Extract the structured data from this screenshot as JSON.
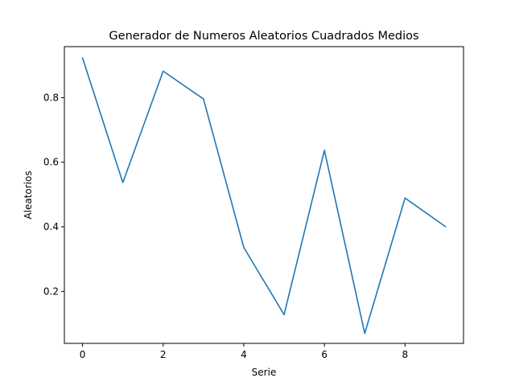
{
  "chart_data": {
    "type": "line",
    "title": "Generador de Numeros Aleatorios Cuadrados Medios",
    "xlabel": "Serie",
    "ylabel": "Aleatorios",
    "xlim": [
      -0.45,
      9.45
    ],
    "ylim": [
      0.039,
      0.958
    ],
    "xticks": [
      0,
      2,
      4,
      6,
      8
    ],
    "yticks": [
      0.2,
      0.4,
      0.6,
      0.8
    ],
    "xtick_labels": [
      "0",
      "2",
      "4",
      "6",
      "8"
    ],
    "ytick_labels": [
      "0.2",
      "0.4",
      "0.6",
      "0.8"
    ],
    "grid": false,
    "legend": "none",
    "series": [
      {
        "color": "#1f77b4",
        "x": [
          0,
          1,
          2,
          3,
          4,
          5,
          6,
          7,
          8,
          9
        ],
        "y": [
          0.923,
          0.537,
          0.882,
          0.796,
          0.336,
          0.128,
          0.637,
          0.07,
          0.489,
          0.401
        ]
      }
    ]
  }
}
